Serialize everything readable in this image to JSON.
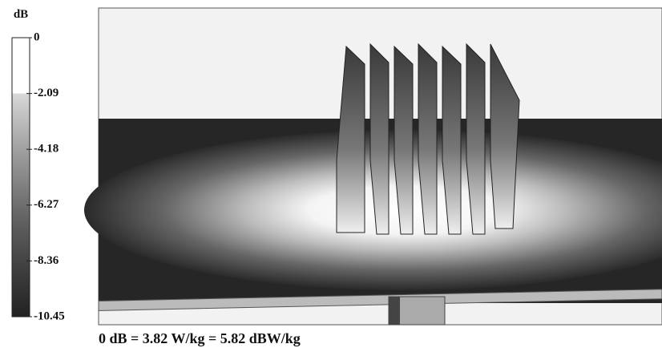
{
  "colorbar": {
    "unit": "dB",
    "ticks": [
      0,
      -2.09,
      -4.18,
      -6.27,
      -8.36,
      -10.45
    ]
  },
  "caption": "0 dB = 3.82 W/kg = 5.82 dBW/kg"
}
